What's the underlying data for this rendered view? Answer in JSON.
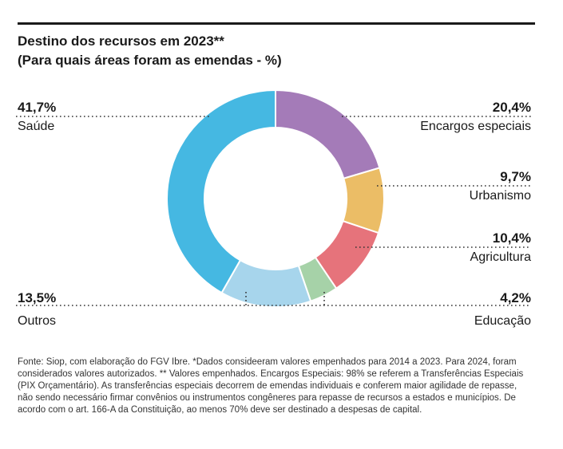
{
  "header": {
    "title": "Destino dos recursos em 2023**",
    "subtitle": "(Para quais áreas foram as emendas - %)"
  },
  "chart_data": {
    "type": "pie",
    "donut": true,
    "title": "Destino dos recursos em 2023**",
    "subtitle": "(Para quais áreas foram as emendas - %)",
    "slices": [
      {
        "name": "Encargos especiais",
        "value": 20.4,
        "label": "20,4%",
        "color": "#a47bb8"
      },
      {
        "name": "Urbanismo",
        "value": 9.7,
        "label": "9,7%",
        "color": "#ebbd66"
      },
      {
        "name": "Agricultura",
        "value": 10.4,
        "label": "10,4%",
        "color": "#e6737b"
      },
      {
        "name": "Educação",
        "value": 4.2,
        "label": "4,2%",
        "color": "#a6d2a8"
      },
      {
        "name": "Outros",
        "value": 13.5,
        "label": "13,5%",
        "color": "#a7d5ec"
      },
      {
        "name": "Saúde",
        "value": 41.7,
        "label": "41,7%",
        "color": "#45b8e2"
      }
    ]
  },
  "labels": {
    "saude": {
      "pct": "41,7%",
      "name": "Saúde"
    },
    "encargos": {
      "pct": "20,4%",
      "name": "Encargos especiais"
    },
    "urbanismo": {
      "pct": "9,7%",
      "name": "Urbanismo"
    },
    "agricultura": {
      "pct": "10,4%",
      "name": "Agricultura"
    },
    "outros": {
      "pct": "13,5%",
      "name": "Outros"
    },
    "educacao": {
      "pct": "4,2%",
      "name": "Educação"
    }
  },
  "footnote": "Fonte: Siop, com elaboração do FGV Ibre. *Dados consideeram valores empenhados para 2014 a 2023. Para 2024, foram considerados valores autorizados. ** Valores empenhados.  Encargos Especiais: 98% se referem a Transferências Especiais (PIX Orçamentário). As transferências especiais decorrem de emendas individuais e conferem maior agilidade de repasse, não sendo necessário firmar convênios ou instrumentos congêneres para repasse de recursos a estados e municípios. De acordo com o art. 166-A da Constituição, ao menos 70% deve ser destinado a despesas de capital."
}
